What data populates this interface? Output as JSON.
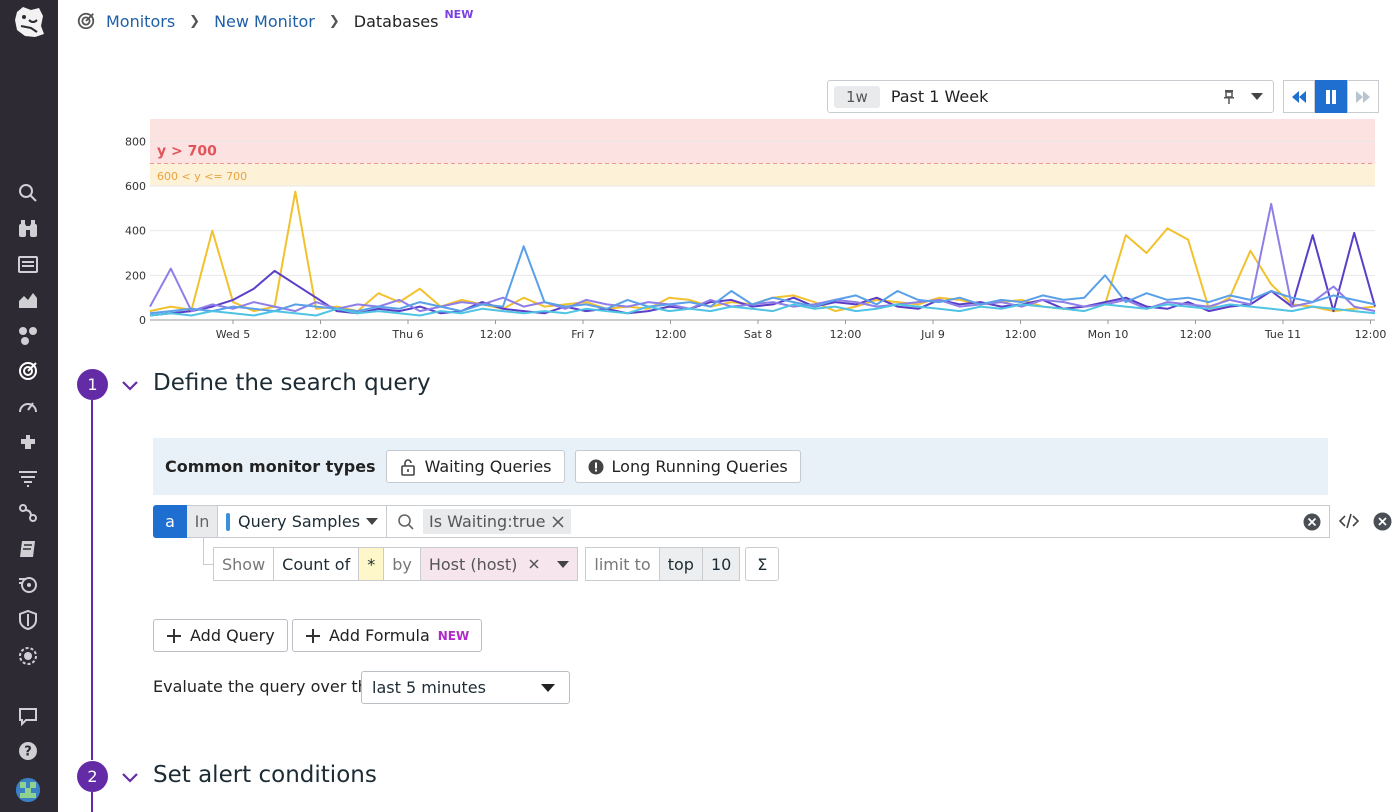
{
  "breadcrumb": {
    "items": [
      "Monitors",
      "New Monitor"
    ],
    "current": "Databases",
    "current_badge": "NEW"
  },
  "timepicker": {
    "chip": "1w",
    "label": "Past 1 Week"
  },
  "chart_data": {
    "type": "line",
    "x_ticks": [
      "Wed 5",
      "12:00",
      "Thu 6",
      "12:00",
      "Fri 7",
      "12:00",
      "Sat 8",
      "12:00",
      "Jul 9",
      "12:00",
      "Mon 10",
      "12:00",
      "Tue 11",
      "12:00"
    ],
    "y_ticks": [
      0,
      200,
      400,
      600,
      800
    ],
    "ylim": [
      0,
      900
    ],
    "thresholds": [
      {
        "label": "y > 700",
        "from": 700,
        "to": 900,
        "color": "#fde2e2",
        "text_color": "#e0555b"
      },
      {
        "label": "600 < y <= 700",
        "from": 600,
        "to": 700,
        "color": "#fdf1d8",
        "text_color": "#e8a33d"
      }
    ],
    "series": [
      {
        "color": "#f2c12e",
        "values": [
          40,
          60,
          45,
          400,
          80,
          40,
          60,
          575,
          50,
          60,
          40,
          120,
          80,
          140,
          60,
          90,
          70,
          50,
          100,
          60,
          70,
          80,
          50,
          60,
          50,
          100,
          90,
          60,
          80,
          70,
          100,
          110,
          80,
          40,
          60,
          90,
          80,
          70,
          100,
          90,
          70,
          80,
          90,
          60,
          50,
          60,
          70,
          380,
          300,
          410,
          360,
          50,
          100,
          310,
          160,
          70,
          60,
          40,
          50,
          60
        ]
      },
      {
        "color": "#5b3ec8",
        "values": [
          20,
          30,
          40,
          60,
          90,
          140,
          220,
          160,
          100,
          40,
          30,
          50,
          40,
          60,
          30,
          40,
          80,
          50,
          40,
          30,
          60,
          40,
          50,
          30,
          40,
          60,
          50,
          80,
          90,
          60,
          70,
          100,
          60,
          80,
          70,
          100,
          60,
          50,
          90,
          70,
          80,
          60,
          70,
          90,
          50,
          60,
          80,
          100,
          60,
          50,
          80,
          40,
          60,
          70,
          130,
          60,
          380,
          40,
          390,
          60
        ]
      },
      {
        "color": "#8f7ee8",
        "values": [
          60,
          230,
          40,
          70,
          50,
          80,
          60,
          40,
          80,
          50,
          70,
          60,
          90,
          40,
          60,
          80,
          70,
          100,
          60,
          80,
          50,
          90,
          70,
          60,
          80,
          70,
          50,
          90,
          60,
          70,
          80,
          60,
          70,
          90,
          80,
          60,
          70,
          80,
          90,
          60,
          70,
          80,
          60,
          90,
          80,
          60,
          70,
          90,
          50,
          80,
          70,
          60,
          90,
          70,
          520,
          60,
          80,
          150,
          60,
          40
        ]
      },
      {
        "color": "#5aa0e8",
        "values": [
          30,
          40,
          50,
          40,
          60,
          50,
          40,
          70,
          60,
          50,
          40,
          60,
          50,
          80,
          60,
          40,
          70,
          60,
          330,
          80,
          60,
          70,
          50,
          90,
          60,
          70,
          80,
          60,
          130,
          70,
          100,
          80,
          60,
          90,
          110,
          70,
          130,
          90,
          80,
          100,
          70,
          90,
          80,
          110,
          90,
          100,
          200,
          80,
          120,
          90,
          100,
          80,
          110,
          90,
          130,
          100,
          80,
          110,
          90,
          70
        ]
      },
      {
        "color": "#4fc3e3",
        "values": [
          20,
          30,
          20,
          40,
          30,
          20,
          40,
          30,
          20,
          50,
          30,
          40,
          30,
          20,
          40,
          30,
          50,
          40,
          30,
          40,
          30,
          50,
          40,
          30,
          60,
          40,
          50,
          40,
          60,
          50,
          40,
          70,
          50,
          60,
          40,
          50,
          70,
          60,
          50,
          40,
          60,
          50,
          70,
          60,
          50,
          40,
          70,
          60,
          50,
          70,
          60,
          50,
          70,
          60,
          50,
          40,
          60,
          50,
          40,
          30
        ]
      }
    ]
  },
  "step1": {
    "num": "1",
    "title": "Define the search query"
  },
  "step2": {
    "num": "2",
    "title": "Set alert conditions"
  },
  "common": {
    "label": "Common monitor types",
    "waiting": "Waiting Queries",
    "long_running": "Long Running Queries"
  },
  "query": {
    "letter": "a",
    "in": "In",
    "source": "Query Samples",
    "tag": "Is Waiting:true"
  },
  "aggregation": {
    "show": "Show",
    "count_of": "Count of",
    "star": "*",
    "by": "by",
    "group": "Host (host)",
    "limit_to": "limit to",
    "top": "top",
    "limit_value": "10",
    "sigma": "Σ"
  },
  "actions": {
    "add_query": "Add Query",
    "add_formula": "Add Formula",
    "formula_badge": "NEW"
  },
  "evaluate": {
    "label": "Evaluate the query over the",
    "value": "last 5 minutes"
  }
}
